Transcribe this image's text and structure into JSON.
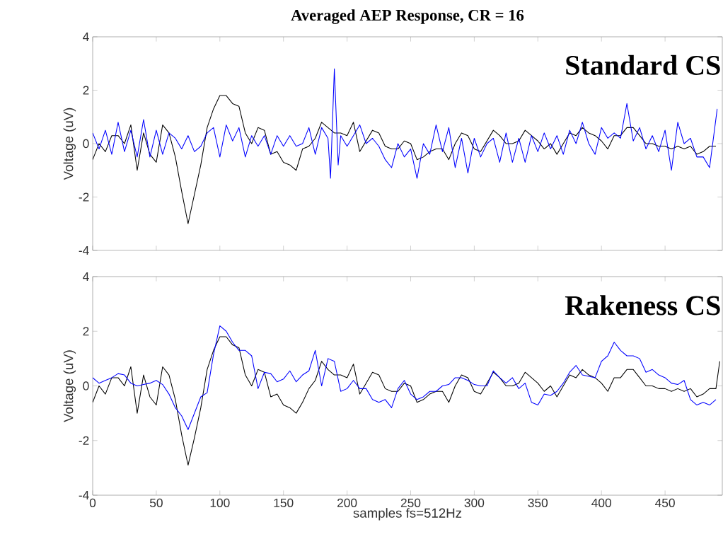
{
  "chart_data": [
    {
      "type": "line",
      "title": "Averaged AEP Response, CR = 16",
      "ylabel": "Voltage (uV)",
      "annotations": [
        "Standard CS"
      ],
      "xlim": [
        0,
        495
      ],
      "ylim": [
        -4,
        4
      ],
      "xticks": [
        0,
        50,
        100,
        150,
        200,
        250,
        300,
        350,
        400,
        450
      ],
      "yticks": [
        -4,
        -2,
        0,
        2,
        4
      ],
      "tick_labels": "y",
      "marker": "none",
      "line_style": "solid",
      "series": [
        {
          "color": "#000000",
          "x": [
            0,
            5,
            10,
            15,
            20,
            25,
            30,
            35,
            40,
            45,
            50,
            55,
            60,
            65,
            70,
            75,
            80,
            85,
            90,
            95,
            100,
            105,
            110,
            115,
            120,
            125,
            130,
            135,
            140,
            145,
            150,
            155,
            160,
            165,
            170,
            175,
            180,
            185,
            190,
            195,
            200,
            205,
            210,
            215,
            220,
            225,
            230,
            235,
            240,
            245,
            250,
            255,
            260,
            265,
            270,
            275,
            280,
            285,
            290,
            295,
            300,
            305,
            310,
            315,
            320,
            325,
            330,
            335,
            340,
            345,
            350,
            355,
            360,
            365,
            370,
            375,
            380,
            385,
            390,
            395,
            400,
            405,
            410,
            415,
            420,
            425,
            430,
            435,
            440,
            445,
            450,
            455,
            460,
            465,
            470,
            475,
            480,
            485,
            490
          ],
          "values": [
            -0.6,
            0.0,
            -0.3,
            0.3,
            0.3,
            0.0,
            0.7,
            -1.0,
            0.4,
            -0.4,
            -0.7,
            0.7,
            0.4,
            -0.5,
            -1.8,
            -3.0,
            -1.9,
            -0.8,
            0.6,
            1.3,
            1.8,
            1.8,
            1.5,
            1.4,
            0.4,
            0.0,
            0.6,
            0.5,
            -0.4,
            -0.3,
            -0.7,
            -0.8,
            -1.0,
            -0.2,
            -0.1,
            0.2,
            0.8,
            0.6,
            0.4,
            0.4,
            0.3,
            0.8,
            -0.3,
            0.1,
            0.5,
            0.4,
            -0.1,
            -0.2,
            -0.2,
            0.1,
            0.0,
            -0.6,
            -0.5,
            -0.3,
            -0.2,
            -0.2,
            -0.6,
            0.0,
            0.4,
            0.3,
            -0.2,
            -0.3,
            0.1,
            0.5,
            0.3,
            0.0,
            0.0,
            0.1,
            0.5,
            0.3,
            0.1,
            -0.2,
            0.0,
            -0.4,
            0.0,
            0.4,
            0.3,
            0.6,
            0.4,
            0.3,
            0.1,
            -0.2,
            0.3,
            0.3,
            0.6,
            0.6,
            0.3,
            0.0,
            0.0,
            -0.1,
            -0.1,
            -0.2,
            -0.1,
            -0.2,
            -0.1,
            -0.4,
            -0.3,
            -0.1,
            -0.1
          ]
        },
        {
          "color": "#0000ff",
          "x": [
            0,
            5,
            10,
            15,
            20,
            25,
            30,
            35,
            40,
            45,
            50,
            55,
            60,
            65,
            70,
            75,
            80,
            85,
            90,
            95,
            100,
            105,
            110,
            115,
            120,
            125,
            130,
            135,
            140,
            145,
            150,
            155,
            160,
            165,
            170,
            175,
            180,
            185,
            187,
            190,
            193,
            195,
            200,
            205,
            210,
            215,
            220,
            225,
            230,
            235,
            240,
            245,
            250,
            255,
            260,
            265,
            270,
            275,
            280,
            285,
            290,
            295,
            300,
            305,
            310,
            315,
            320,
            325,
            330,
            335,
            340,
            345,
            350,
            355,
            360,
            365,
            370,
            375,
            380,
            385,
            390,
            395,
            400,
            405,
            410,
            415,
            420,
            425,
            430,
            435,
            440,
            445,
            450,
            455,
            460,
            465,
            470,
            475,
            480,
            485,
            491
          ],
          "values": [
            0.4,
            -0.2,
            0.5,
            -0.4,
            0.8,
            -0.3,
            0.5,
            -0.5,
            0.9,
            -0.5,
            0.5,
            -0.4,
            0.4,
            0.2,
            -0.2,
            0.3,
            -0.3,
            -0.1,
            0.4,
            0.6,
            -0.5,
            0.7,
            0.1,
            0.6,
            -0.5,
            0.3,
            -0.1,
            0.3,
            -0.4,
            0.3,
            -0.1,
            0.3,
            -0.1,
            0.0,
            0.6,
            -0.4,
            0.6,
            0.2,
            -1.3,
            2.8,
            -0.8,
            0.3,
            -0.1,
            0.3,
            0.7,
            0.0,
            0.2,
            -0.1,
            -0.6,
            -0.9,
            0.0,
            -0.5,
            -0.2,
            -1.3,
            0.0,
            -0.4,
            0.7,
            -0.3,
            0.6,
            -0.9,
            0.2,
            -1.1,
            0.2,
            -0.5,
            0.0,
            0.2,
            -0.7,
            0.4,
            -0.7,
            0.2,
            -0.7,
            0.3,
            -0.3,
            0.4,
            -0.2,
            0.3,
            -0.4,
            0.5,
            0.0,
            0.8,
            0.0,
            -0.4,
            0.6,
            0.2,
            0.4,
            0.2,
            1.5,
            0.1,
            0.6,
            -0.2,
            0.3,
            -0.3,
            0.5,
            -1.0,
            0.8,
            0.0,
            0.2,
            -0.5,
            -0.5,
            -0.9,
            1.3
          ]
        }
      ]
    },
    {
      "type": "line",
      "xlabel": "samples fs=512Hz",
      "ylabel": "Voltage (uV)",
      "annotations": [
        "Rakeness CS"
      ],
      "xlim": [
        0,
        495
      ],
      "ylim": [
        -4,
        4
      ],
      "xticks": [
        0,
        50,
        100,
        150,
        200,
        250,
        300,
        350,
        400,
        450
      ],
      "yticks": [
        -4,
        -2,
        0,
        2,
        4
      ],
      "marker": "none",
      "line_style": "solid",
      "series": [
        {
          "color": "#000000",
          "x": [
            0,
            5,
            10,
            15,
            20,
            25,
            30,
            35,
            40,
            45,
            50,
            55,
            60,
            65,
            70,
            75,
            80,
            85,
            90,
            95,
            100,
            105,
            110,
            115,
            120,
            125,
            130,
            135,
            140,
            145,
            150,
            155,
            160,
            165,
            170,
            175,
            180,
            185,
            190,
            195,
            200,
            205,
            210,
            215,
            220,
            225,
            230,
            235,
            240,
            245,
            250,
            255,
            260,
            265,
            270,
            275,
            280,
            285,
            290,
            295,
            300,
            305,
            310,
            315,
            320,
            325,
            330,
            335,
            340,
            345,
            350,
            355,
            360,
            365,
            370,
            375,
            380,
            385,
            390,
            395,
            400,
            405,
            410,
            415,
            420,
            425,
            430,
            435,
            440,
            445,
            450,
            455,
            460,
            465,
            470,
            475,
            480,
            485,
            490,
            493
          ],
          "values": [
            -0.6,
            0.0,
            -0.3,
            0.3,
            0.3,
            0.0,
            0.7,
            -1.0,
            0.4,
            -0.4,
            -0.7,
            0.7,
            0.4,
            -0.5,
            -1.8,
            -2.9,
            -1.9,
            -0.8,
            0.6,
            1.3,
            1.8,
            1.8,
            1.5,
            1.4,
            0.4,
            0.0,
            0.6,
            0.5,
            -0.4,
            -0.3,
            -0.7,
            -0.8,
            -1.0,
            -0.6,
            -0.1,
            0.2,
            0.9,
            0.6,
            0.4,
            0.4,
            0.3,
            0.8,
            -0.3,
            0.1,
            0.5,
            0.4,
            -0.1,
            -0.2,
            -0.2,
            0.1,
            0.0,
            -0.6,
            -0.5,
            -0.3,
            -0.2,
            -0.2,
            -0.6,
            0.0,
            0.4,
            0.3,
            -0.2,
            -0.3,
            0.1,
            0.5,
            0.3,
            0.0,
            0.0,
            0.1,
            0.5,
            0.3,
            0.1,
            -0.2,
            0.0,
            -0.4,
            0.0,
            0.4,
            0.3,
            0.6,
            0.4,
            0.3,
            0.1,
            -0.2,
            0.3,
            0.3,
            0.6,
            0.6,
            0.3,
            0.0,
            0.0,
            -0.1,
            -0.1,
            -0.2,
            -0.1,
            -0.2,
            -0.1,
            -0.4,
            -0.3,
            -0.1,
            -0.1,
            0.9
          ]
        },
        {
          "color": "#0000ff",
          "x": [
            0,
            5,
            10,
            15,
            20,
            25,
            30,
            35,
            40,
            45,
            50,
            55,
            60,
            65,
            70,
            75,
            80,
            85,
            90,
            95,
            100,
            105,
            110,
            115,
            120,
            125,
            130,
            135,
            140,
            145,
            150,
            155,
            160,
            165,
            170,
            175,
            180,
            185,
            190,
            195,
            200,
            205,
            210,
            215,
            220,
            225,
            230,
            235,
            240,
            245,
            250,
            255,
            260,
            265,
            270,
            275,
            280,
            285,
            290,
            295,
            300,
            305,
            310,
            315,
            320,
            325,
            330,
            335,
            340,
            345,
            350,
            355,
            360,
            365,
            370,
            375,
            380,
            385,
            390,
            395,
            400,
            405,
            410,
            415,
            420,
            425,
            430,
            435,
            440,
            445,
            450,
            455,
            460,
            465,
            470,
            475,
            480,
            485,
            490
          ],
          "values": [
            0.3,
            0.1,
            0.2,
            0.3,
            0.45,
            0.4,
            0.1,
            0.0,
            0.05,
            0.1,
            0.2,
            0.05,
            -0.3,
            -0.8,
            -1.1,
            -1.6,
            -1.0,
            -0.4,
            -0.25,
            1.15,
            2.2,
            2.0,
            1.6,
            1.3,
            1.3,
            1.1,
            -0.1,
            0.5,
            0.45,
            0.15,
            0.25,
            0.55,
            0.15,
            0.4,
            0.55,
            1.3,
            0.0,
            1.0,
            0.9,
            -0.2,
            -0.1,
            0.2,
            -0.1,
            -0.1,
            -0.5,
            -0.6,
            -0.5,
            -0.8,
            -0.1,
            0.2,
            -0.3,
            -0.5,
            -0.4,
            -0.2,
            -0.2,
            0.0,
            0.05,
            0.3,
            0.3,
            0.2,
            0.05,
            0.0,
            0.0,
            0.55,
            0.3,
            0.1,
            0.3,
            -0.1,
            0.1,
            -0.6,
            -0.7,
            -0.3,
            -0.35,
            -0.2,
            0.1,
            0.5,
            0.75,
            0.4,
            0.35,
            0.3,
            0.9,
            1.1,
            1.6,
            1.3,
            1.1,
            1.1,
            1.0,
            0.5,
            0.6,
            0.4,
            0.3,
            0.1,
            0.05,
            0.2,
            -0.5,
            -0.7,
            -0.6,
            -0.7,
            -0.5
          ]
        }
      ]
    }
  ]
}
